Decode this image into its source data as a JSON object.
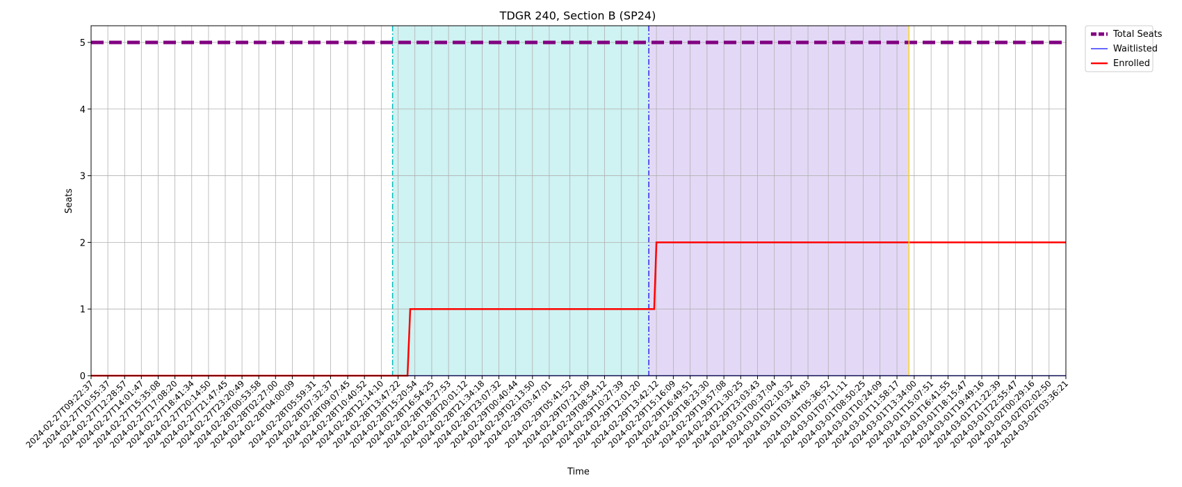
{
  "chart_data": {
    "type": "line",
    "title": "TDGR 240, Section B (SP24)",
    "xlabel": "Time",
    "ylabel": "Seats",
    "ylim": [
      0,
      5.25
    ],
    "yticks": [
      0,
      1,
      2,
      3,
      4,
      5
    ],
    "grid": true,
    "legend_placement": "outside-top-right",
    "x_ticks": [
      "2024-02-27T09:22:37",
      "2024-02-27T10:55:37",
      "2024-02-27T12:28:57",
      "2024-02-27T14:01:47",
      "2024-02-27T15:35:08",
      "2024-02-27T17:08:20",
      "2024-02-27T18:41:34",
      "2024-02-27T20:14:50",
      "2024-02-27T21:47:45",
      "2024-02-27T23:20:49",
      "2024-02-28T00:53:58",
      "2024-02-28T02:27:00",
      "2024-02-28T04:00:09",
      "2024-02-28T05:59:31",
      "2024-02-28T07:32:37",
      "2024-02-28T09:07:45",
      "2024-02-28T10:40:52",
      "2024-02-28T12:14:10",
      "2024-02-28T13:47:22",
      "2024-02-28T15:20:54",
      "2024-02-28T16:54:25",
      "2024-02-28T18:27:53",
      "2024-02-28T20:01:12",
      "2024-02-28T21:34:18",
      "2024-02-28T23:07:32",
      "2024-02-29T00:40:44",
      "2024-02-29T02:13:50",
      "2024-02-29T03:47:01",
      "2024-02-29T05:41:52",
      "2024-02-29T07:21:09",
      "2024-02-29T08:54:12",
      "2024-02-29T10:27:39",
      "2024-02-29T12:01:20",
      "2024-02-29T13:42:12",
      "2024-02-29T15:16:09",
      "2024-02-29T16:49:51",
      "2024-02-29T18:23:30",
      "2024-02-29T19:57:08",
      "2024-02-29T21:30:25",
      "2024-02-29T23:03:43",
      "2024-03-01T00:37:04",
      "2024-03-01T02:10:32",
      "2024-03-01T03:44:03",
      "2024-03-01T05:36:52",
      "2024-03-01T07:11:11",
      "2024-03-01T08:50:25",
      "2024-03-01T10:24:09",
      "2024-03-01T11:58:17",
      "2024-03-01T13:34:00",
      "2024-03-01T15:07:51",
      "2024-03-01T16:41:55",
      "2024-03-01T18:15:47",
      "2024-03-01T19:49:16",
      "2024-03-01T21:22:39",
      "2024-03-01T22:55:47",
      "2024-03-02T00:29:16",
      "2024-03-02T02:02:50",
      "2024-03-02T03:36:21"
    ],
    "x_extent": [
      "2024-02-27T09:22:37",
      "2024-03-02T03:36:21"
    ],
    "series": [
      {
        "name": "Total Seats",
        "color": "#800080",
        "style": "dashed",
        "points": [
          {
            "x": "2024-02-27T09:22:37",
            "y": 5
          },
          {
            "x": "2024-03-02T03:36:21",
            "y": 5
          }
        ]
      },
      {
        "name": "Waitlisted",
        "color": "#3333ff",
        "style": "solid",
        "points": [
          {
            "x": "2024-02-27T09:22:37",
            "y": 0
          },
          {
            "x": "2024-03-02T03:36:21",
            "y": 0
          }
        ]
      },
      {
        "name": "Enrolled",
        "color": "#ff0000",
        "style": "solid",
        "points": [
          {
            "x": "2024-02-27T09:22:37",
            "y": 0
          },
          {
            "x": "2024-02-28T14:40:00",
            "y": 0
          },
          {
            "x": "2024-02-28T14:55:00",
            "y": 1
          },
          {
            "x": "2024-02-29T13:30:00",
            "y": 1
          },
          {
            "x": "2024-02-29T13:42:12",
            "y": 2
          },
          {
            "x": "2024-03-02T03:36:21",
            "y": 2
          }
        ]
      }
    ],
    "regions": [
      {
        "start": "2024-02-28T13:17:00",
        "end": "2024-02-29T13:00:00",
        "color": "#9fe6e6",
        "edge_color": "#00b8b8",
        "edge_style": "dashdot"
      },
      {
        "start": "2024-02-29T13:00:00",
        "end": "2024-03-01T13:05:00",
        "color": "#c7b3ee",
        "edge_color": "#3322ee",
        "edge_style": "dashdot"
      }
    ],
    "markers": [
      {
        "x": "2024-03-01T13:05:00",
        "color": "#ffd700"
      }
    ]
  }
}
